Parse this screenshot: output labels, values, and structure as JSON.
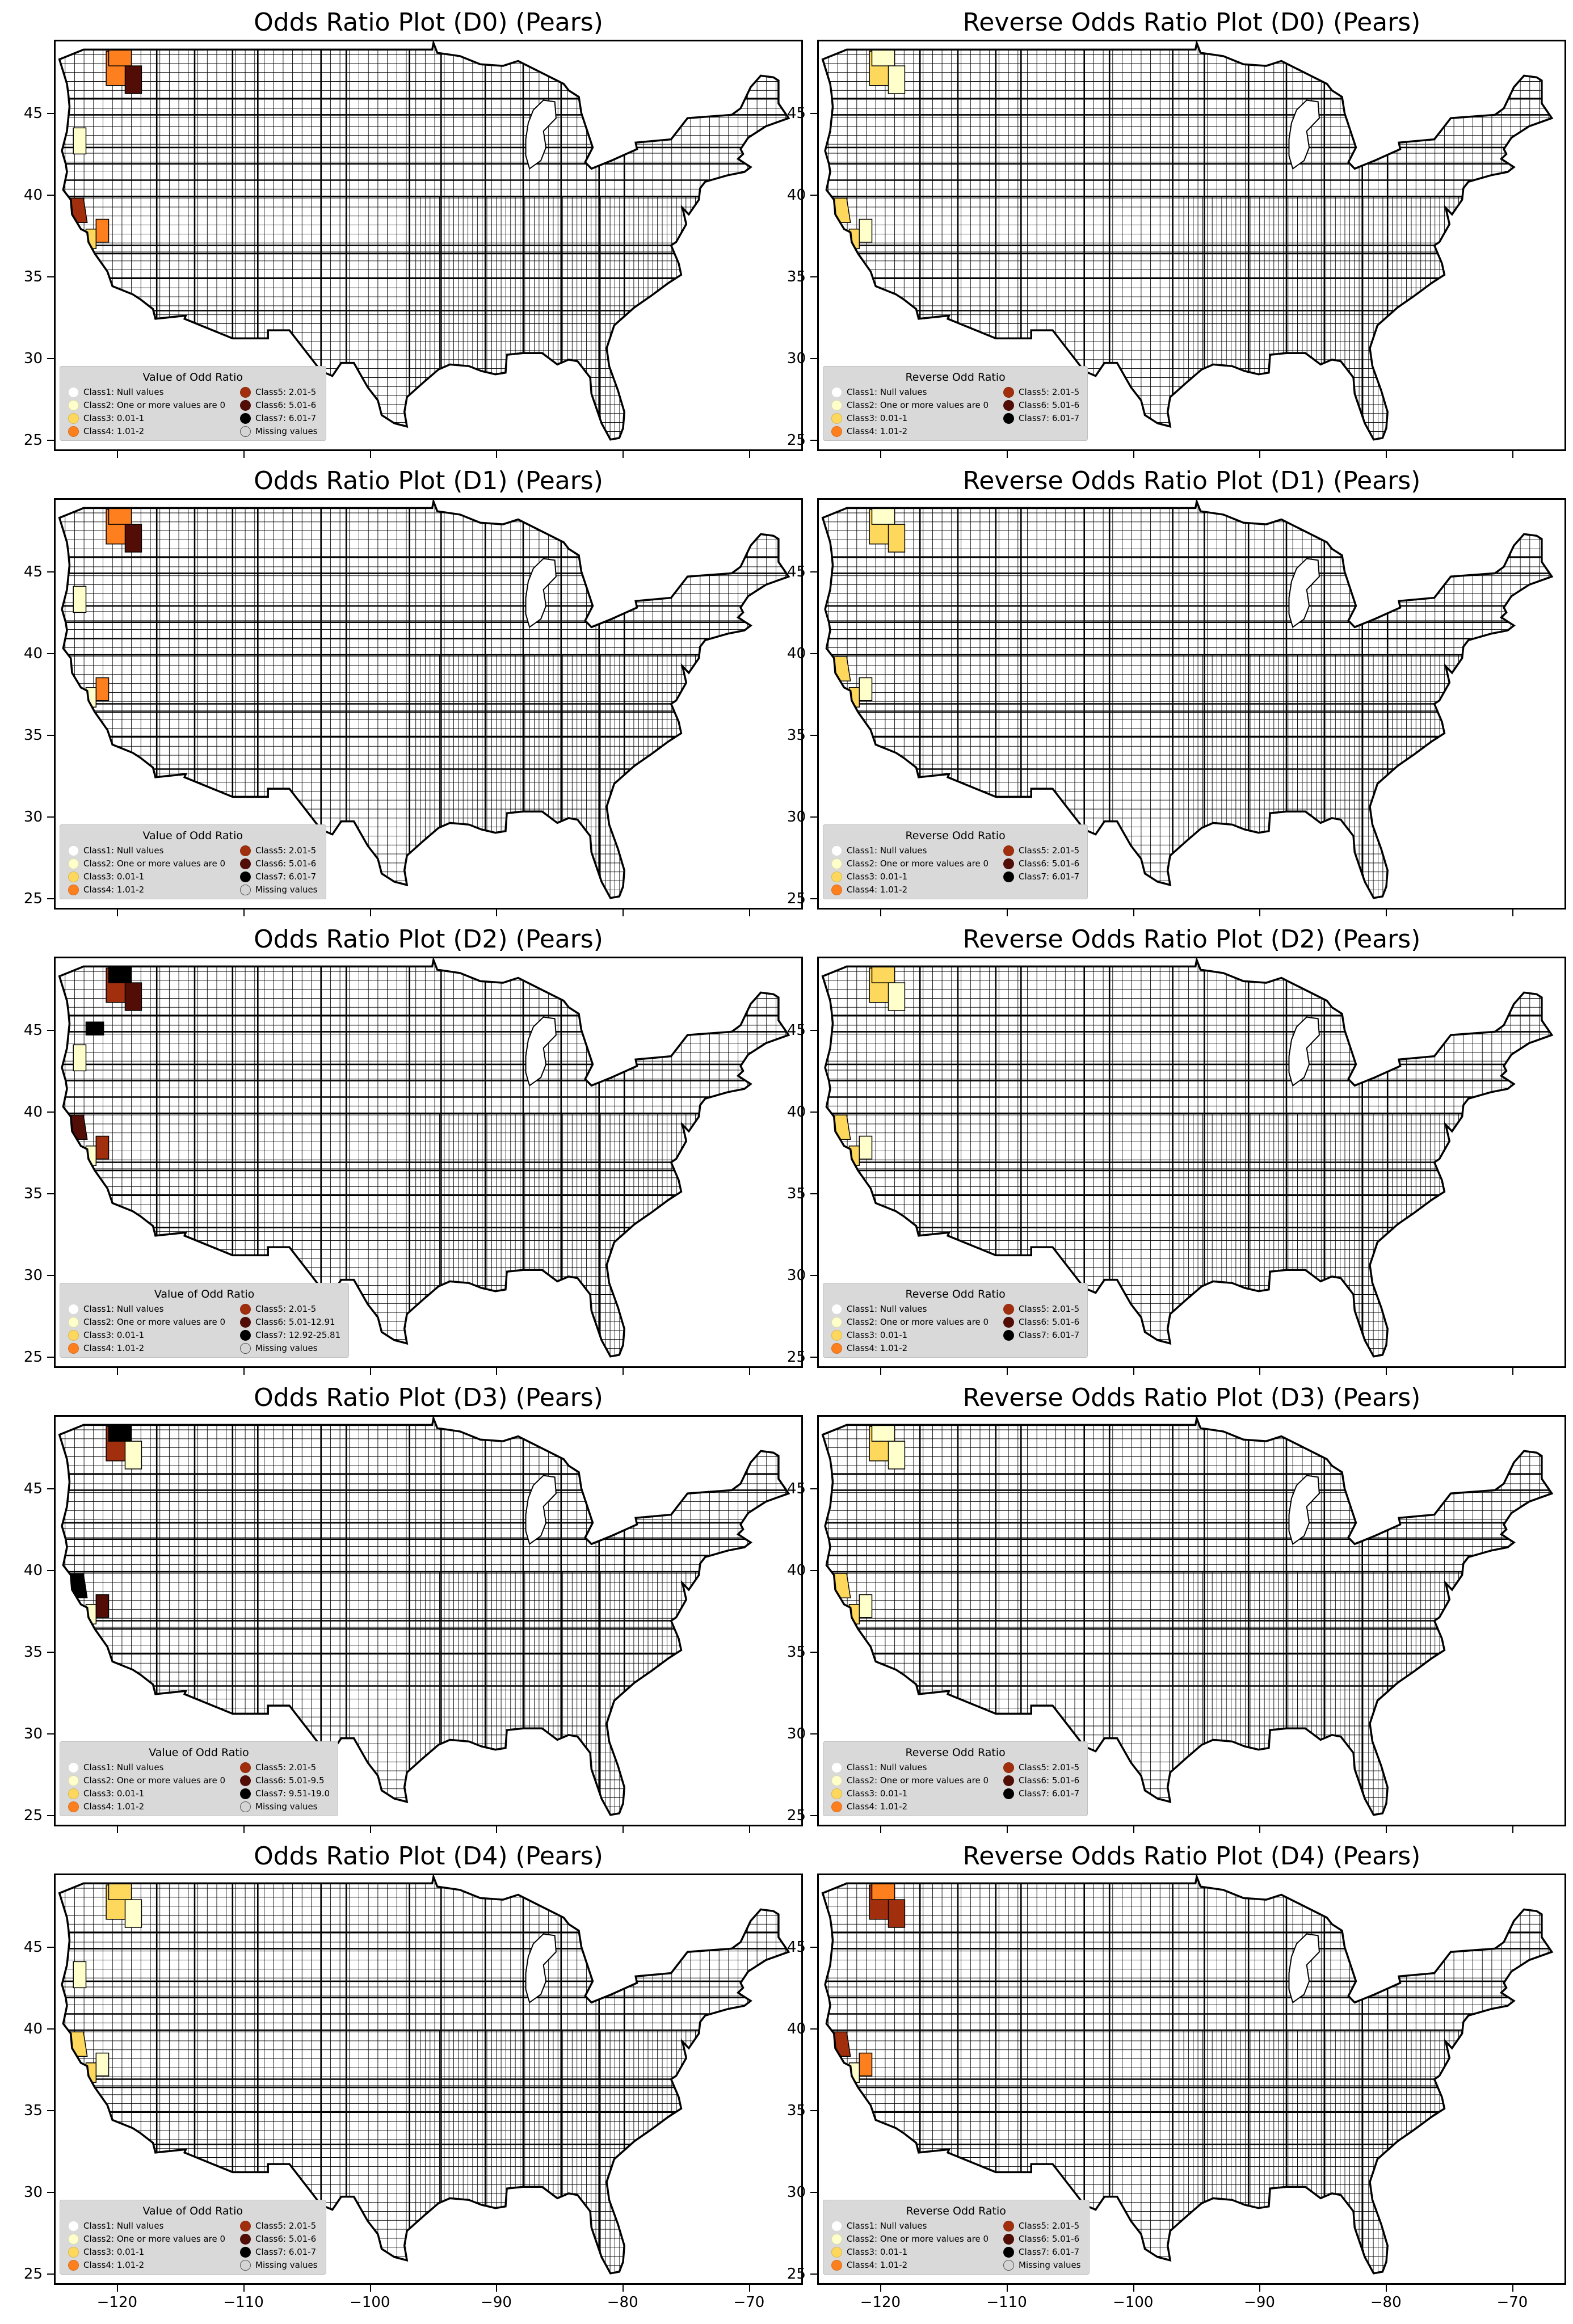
{
  "palette": {
    "class1": "#ffffff",
    "class2": "#ffffcc",
    "class3": "#fed85c",
    "class4": "#fd7f1e",
    "class5": "#a12e0c",
    "class6": "#520d06",
    "class7": "#000000",
    "missing": "#d4d4d4"
  },
  "x_ticks": [
    "−120",
    "−110",
    "−100",
    "−90",
    "−80",
    "−70"
  ],
  "y_ticks": [
    "45",
    "40",
    "35",
    "30",
    "25"
  ],
  "panels": [
    {
      "title": "Odds Ratio Plot (D0) (Pears)",
      "legend": {
        "title": "Value of Odd Ratio",
        "left": [
          "Class1: Null values",
          "Class2: One or more values are 0",
          "Class3: 0.01-1",
          "Class4: 1.01-2"
        ],
        "right": [
          "Class5: 2.01-5",
          "Class6: 5.01-6",
          "Class7: 6.01-7",
          "Missing values"
        ]
      },
      "highlights": [
        {
          "region": "wa-central",
          "class": "class4"
        },
        {
          "region": "wa-north",
          "class": "class4"
        },
        {
          "region": "wa-east",
          "class": "class6"
        },
        {
          "region": "or-west",
          "class": "class2"
        },
        {
          "region": "ca-north-coast",
          "class": "class5"
        },
        {
          "region": "ca-central",
          "class": "class4"
        },
        {
          "region": "ca-sierra",
          "class": "class3"
        }
      ]
    },
    {
      "title": "Reverse Odds Ratio Plot (D0) (Pears)",
      "legend": {
        "title": "Reverse Odd Ratio",
        "left": [
          "Class1: Null values",
          "Class2: One or more values are 0",
          "Class3: 0.01-1",
          "Class4: 1.01-2"
        ],
        "right": [
          "Class5: 2.01-5",
          "Class6: 5.01-6",
          "Class7: 6.01-7"
        ]
      },
      "highlights": [
        {
          "region": "wa-central",
          "class": "class3"
        },
        {
          "region": "wa-north",
          "class": "class2"
        },
        {
          "region": "wa-east",
          "class": "class2"
        },
        {
          "region": "ca-north-coast",
          "class": "class3"
        },
        {
          "region": "ca-central",
          "class": "class2"
        },
        {
          "region": "ca-sierra",
          "class": "class3"
        }
      ]
    },
    {
      "title": "Odds Ratio Plot (D1) (Pears)",
      "legend": {
        "title": "Value of Odd Ratio",
        "left": [
          "Class1: Null values",
          "Class2: One or more values are 0",
          "Class3: 0.01-1",
          "Class4: 1.01-2"
        ],
        "right": [
          "Class5: 2.01-5",
          "Class6: 5.01-6",
          "Class7: 6.01-7",
          "Missing values"
        ]
      },
      "highlights": [
        {
          "region": "wa-central",
          "class": "class4"
        },
        {
          "region": "wa-north",
          "class": "class4"
        },
        {
          "region": "wa-east",
          "class": "class6"
        },
        {
          "region": "or-west",
          "class": "class2"
        },
        {
          "region": "ca-central",
          "class": "class4"
        },
        {
          "region": "ca-sierra",
          "class": "class2"
        }
      ]
    },
    {
      "title": "Reverse Odds Ratio Plot (D1) (Pears)",
      "legend": {
        "title": "Reverse Odd Ratio",
        "left": [
          "Class1: Null values",
          "Class2: One or more values are 0",
          "Class3: 0.01-1",
          "Class4: 1.01-2"
        ],
        "right": [
          "Class5: 2.01-5",
          "Class6: 5.01-6",
          "Class7: 6.01-7"
        ]
      },
      "highlights": [
        {
          "region": "wa-central",
          "class": "class3"
        },
        {
          "region": "wa-north",
          "class": "class2"
        },
        {
          "region": "wa-east",
          "class": "class3"
        },
        {
          "region": "ca-north-coast",
          "class": "class3"
        },
        {
          "region": "ca-central",
          "class": "class2"
        },
        {
          "region": "ca-sierra",
          "class": "class3"
        }
      ]
    },
    {
      "title": "Odds Ratio Plot (D2) (Pears)",
      "legend": {
        "title": "Value of Odd Ratio",
        "left": [
          "Class1: Null values",
          "Class2: One or more values are 0",
          "Class3: 0.01-1",
          "Class4: 1.01-2"
        ],
        "right": [
          "Class5: 2.01-5",
          "Class6: 5.01-12.91",
          "Class7: 12.92-25.81",
          "Missing values"
        ]
      },
      "highlights": [
        {
          "region": "wa-central",
          "class": "class5"
        },
        {
          "region": "wa-north",
          "class": "class7"
        },
        {
          "region": "wa-east",
          "class": "class6"
        },
        {
          "region": "or-west",
          "class": "class2"
        },
        {
          "region": "or-north",
          "class": "class7"
        },
        {
          "region": "ca-north-coast",
          "class": "class6"
        },
        {
          "region": "ca-central",
          "class": "class5"
        },
        {
          "region": "ca-sierra",
          "class": "class2"
        }
      ]
    },
    {
      "title": "Reverse Odds Ratio Plot (D2) (Pears)",
      "legend": {
        "title": "Reverse Odd Ratio",
        "left": [
          "Class1: Null values",
          "Class2: One or more values are 0",
          "Class3: 0.01-1",
          "Class4: 1.01-2"
        ],
        "right": [
          "Class5: 2.01-5",
          "Class6: 5.01-6",
          "Class7: 6.01-7"
        ]
      },
      "highlights": [
        {
          "region": "wa-central",
          "class": "class3"
        },
        {
          "region": "wa-north",
          "class": "class3"
        },
        {
          "region": "wa-east",
          "class": "class2"
        },
        {
          "region": "ca-north-coast",
          "class": "class3"
        },
        {
          "region": "ca-central",
          "class": "class2"
        },
        {
          "region": "ca-sierra",
          "class": "class3"
        }
      ]
    },
    {
      "title": "Odds Ratio Plot (D3) (Pears)",
      "legend": {
        "title": "Value of Odd Ratio",
        "left": [
          "Class1: Null values",
          "Class2: One or more values are 0",
          "Class3: 0.01-1",
          "Class4: 1.01-2"
        ],
        "right": [
          "Class5: 2.01-5",
          "Class6: 5.01-9.5",
          "Class7: 9.51-19.0",
          "Missing values"
        ]
      },
      "highlights": [
        {
          "region": "wa-central",
          "class": "class5"
        },
        {
          "region": "wa-north",
          "class": "class7"
        },
        {
          "region": "wa-east",
          "class": "class2"
        },
        {
          "region": "ca-north-coast",
          "class": "class7"
        },
        {
          "region": "ca-central",
          "class": "class6"
        },
        {
          "region": "ca-sierra",
          "class": "class2"
        }
      ]
    },
    {
      "title": "Reverse Odds Ratio Plot (D3) (Pears)",
      "legend": {
        "title": "Reverse Odd Ratio",
        "left": [
          "Class1: Null values",
          "Class2: One or more values are 0",
          "Class3: 0.01-1",
          "Class4: 1.01-2"
        ],
        "right": [
          "Class5: 2.01-5",
          "Class6: 5.01-6",
          "Class7: 6.01-7"
        ]
      },
      "highlights": [
        {
          "region": "wa-central",
          "class": "class3"
        },
        {
          "region": "wa-north",
          "class": "class2"
        },
        {
          "region": "wa-east",
          "class": "class2"
        },
        {
          "region": "ca-north-coast",
          "class": "class3"
        },
        {
          "region": "ca-central",
          "class": "class2"
        },
        {
          "region": "ca-sierra",
          "class": "class3"
        }
      ]
    },
    {
      "title": "Odds Ratio Plot (D4) (Pears)",
      "legend": {
        "title": "Value of Odd Ratio",
        "left": [
          "Class1: Null values",
          "Class2: One or more values are 0",
          "Class3: 0.01-1",
          "Class4: 1.01-2"
        ],
        "right": [
          "Class5: 2.01-5",
          "Class6: 5.01-6",
          "Class7: 6.01-7",
          "Missing values"
        ]
      },
      "highlights": [
        {
          "region": "wa-central",
          "class": "class3"
        },
        {
          "region": "wa-north",
          "class": "class3"
        },
        {
          "region": "wa-east",
          "class": "class2"
        },
        {
          "region": "or-west",
          "class": "class2"
        },
        {
          "region": "ca-north-coast",
          "class": "class3"
        },
        {
          "region": "ca-central",
          "class": "class2"
        },
        {
          "region": "ca-sierra",
          "class": "class3"
        }
      ]
    },
    {
      "title": "Reverse Odds Ratio Plot (D4) (Pears)",
      "legend": {
        "title": "Reverse Odd Ratio",
        "left": [
          "Class1: Null values",
          "Class2: One or more values are 0",
          "Class3: 0.01-1",
          "Class4: 1.01-2"
        ],
        "right": [
          "Class5: 2.01-5",
          "Class6: 5.01-6",
          "Class7: 6.01-7",
          "Missing values"
        ]
      },
      "highlights": [
        {
          "region": "wa-central",
          "class": "class5"
        },
        {
          "region": "wa-north",
          "class": "class4"
        },
        {
          "region": "wa-east",
          "class": "class5"
        },
        {
          "region": "ca-north-coast",
          "class": "class5"
        },
        {
          "region": "ca-central",
          "class": "class4"
        },
        {
          "region": "ca-sierra",
          "class": "class2"
        }
      ]
    }
  ]
}
